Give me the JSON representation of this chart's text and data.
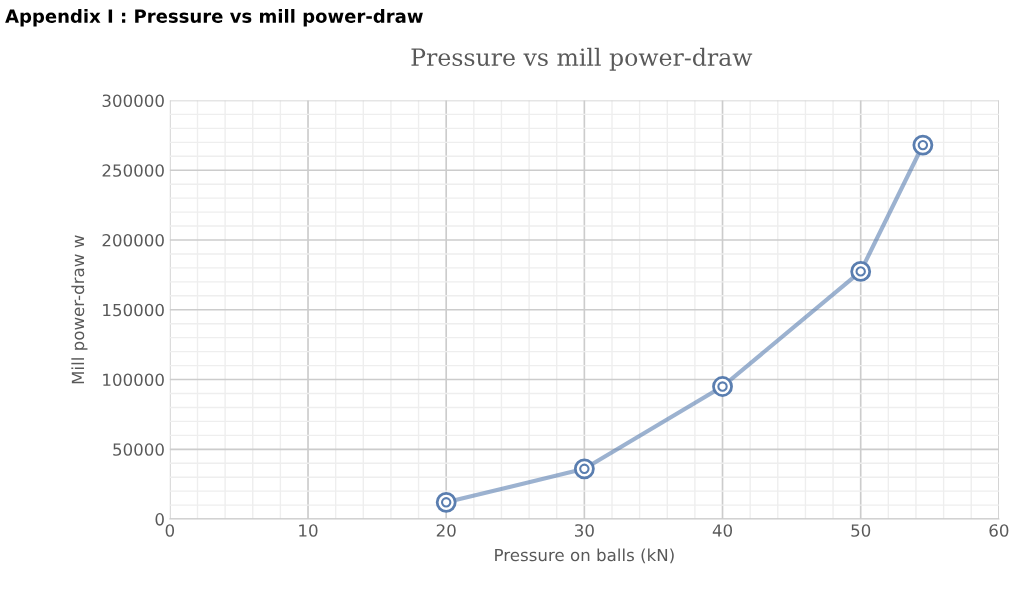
{
  "chart_data": {
    "type": "line",
    "title": "Pressure vs mill power-draw",
    "annotations": [
      "Appendix I : Pressure vs mill power-draw"
    ],
    "xlabel": "Pressure on balls (kN)",
    "ylabel": "Mill power-draw w",
    "series": [
      {
        "color": "#5a7eb0",
        "x": [
          20,
          30,
          40,
          50,
          54.5
        ],
        "values": [
          12000,
          36000,
          95000,
          177500,
          268000
        ]
      }
    ],
    "xlim": [
      0,
      60
    ],
    "xticks": [
      0,
      10,
      20,
      30,
      40,
      50,
      60
    ],
    "ylim": [
      0,
      300000
    ],
    "yticks": [
      0,
      50000,
      100000,
      150000,
      200000,
      250000,
      300000
    ],
    "grid": true,
    "marker": "circle",
    "line_style": "solid"
  }
}
